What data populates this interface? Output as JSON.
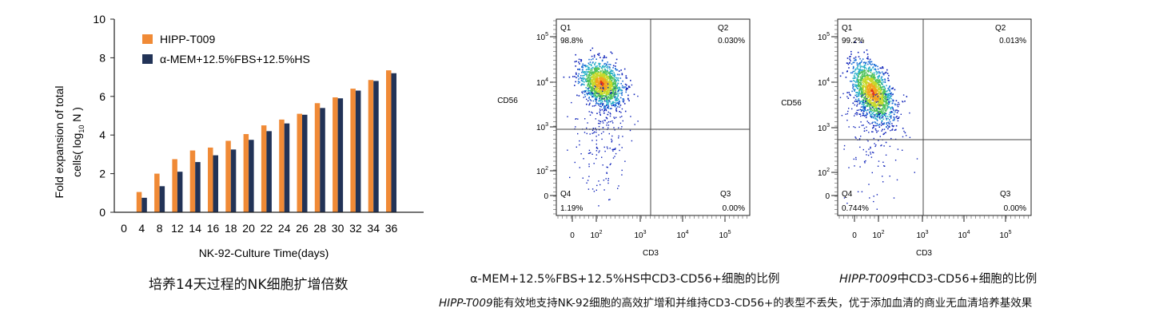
{
  "colors": {
    "orange": "#f08a36",
    "navy": "#223357",
    "axis": "#222222",
    "quad_line": "#444444"
  },
  "chart_data": [
    {
      "type": "bar",
      "xlabel": "NK-92-Culture Time(days)",
      "ylabel_line1": "Fold expansion of total",
      "ylabel_line2_prefix": "cells( log",
      "ylabel_sub": "10",
      "ylabel_line2_suffix": " N )",
      "ylim": [
        0,
        10
      ],
      "yticks": [
        "0",
        "2",
        "4",
        "6",
        "8",
        "10"
      ],
      "categories": [
        "0",
        "4",
        "8",
        "12",
        "14",
        "16",
        "18",
        "20",
        "22",
        "24",
        "26",
        "28",
        "30",
        "32",
        "34",
        "36"
      ],
      "series": [
        {
          "name": "HIPP-T009",
          "values": [
            0,
            1.05,
            2.0,
            2.75,
            3.2,
            3.35,
            3.7,
            4.05,
            4.5,
            4.8,
            5.1,
            5.65,
            5.95,
            6.4,
            6.85,
            7.35
          ]
        },
        {
          "name": "α-MEM+12.5%FBS+12.5%HS",
          "values": [
            0,
            0.75,
            1.35,
            2.1,
            2.6,
            2.95,
            3.25,
            3.75,
            4.2,
            4.6,
            5.05,
            5.4,
            5.9,
            6.3,
            6.8,
            7.2
          ]
        }
      ],
      "legend": "top-left",
      "caption": "培养14天过程的NK细胞扩增倍数"
    },
    {
      "type": "scatter",
      "xlabel": "CD3",
      "ylabel": "CD56",
      "xticks": [
        "0",
        "10",
        "10",
        "10",
        "10"
      ],
      "xtick_exp": [
        "",
        "2",
        "3",
        "4",
        "5"
      ],
      "yticks": [
        "0",
        "10",
        "10",
        "10",
        "10"
      ],
      "ytick_exp": [
        "",
        "2",
        "3",
        "4",
        "5"
      ],
      "quadrants": [
        {
          "name": "Q1",
          "percent": "98.8%"
        },
        {
          "name": "Q2",
          "percent": "0.030%"
        },
        {
          "name": "Q3",
          "percent": "0.00%"
        },
        {
          "name": "Q4",
          "percent": "1.19%"
        }
      ],
      "caption": "α-MEM+12.5%FBS+12.5%HS中CD3-CD56+细胞的比例"
    },
    {
      "type": "scatter",
      "xlabel": "CD3",
      "ylabel": "CD56",
      "xticks": [
        "0",
        "10",
        "10",
        "10",
        "10"
      ],
      "xtick_exp": [
        "",
        "2",
        "3",
        "4",
        "5"
      ],
      "yticks": [
        "0",
        "10",
        "10",
        "10",
        "10"
      ],
      "ytick_exp": [
        "",
        "2",
        "3",
        "4",
        "5"
      ],
      "quadrants": [
        {
          "name": "Q1",
          "percent": "99.2%"
        },
        {
          "name": "Q2",
          "percent": "0.013%"
        },
        {
          "name": "Q3",
          "percent": "0.00%"
        },
        {
          "name": "Q4",
          "percent": "0.744%"
        }
      ],
      "caption_italic": "HIPP-T009",
      "caption_rest": "中CD3-CD56+细胞的比例"
    }
  ],
  "footnote": {
    "italic": "HIPP-T009",
    "rest": "能有效地支持NK-92细胞的高效扩增和并维持CD3-CD56+的表型不丢失，优于添加血清的商业无血清培养基效果"
  }
}
